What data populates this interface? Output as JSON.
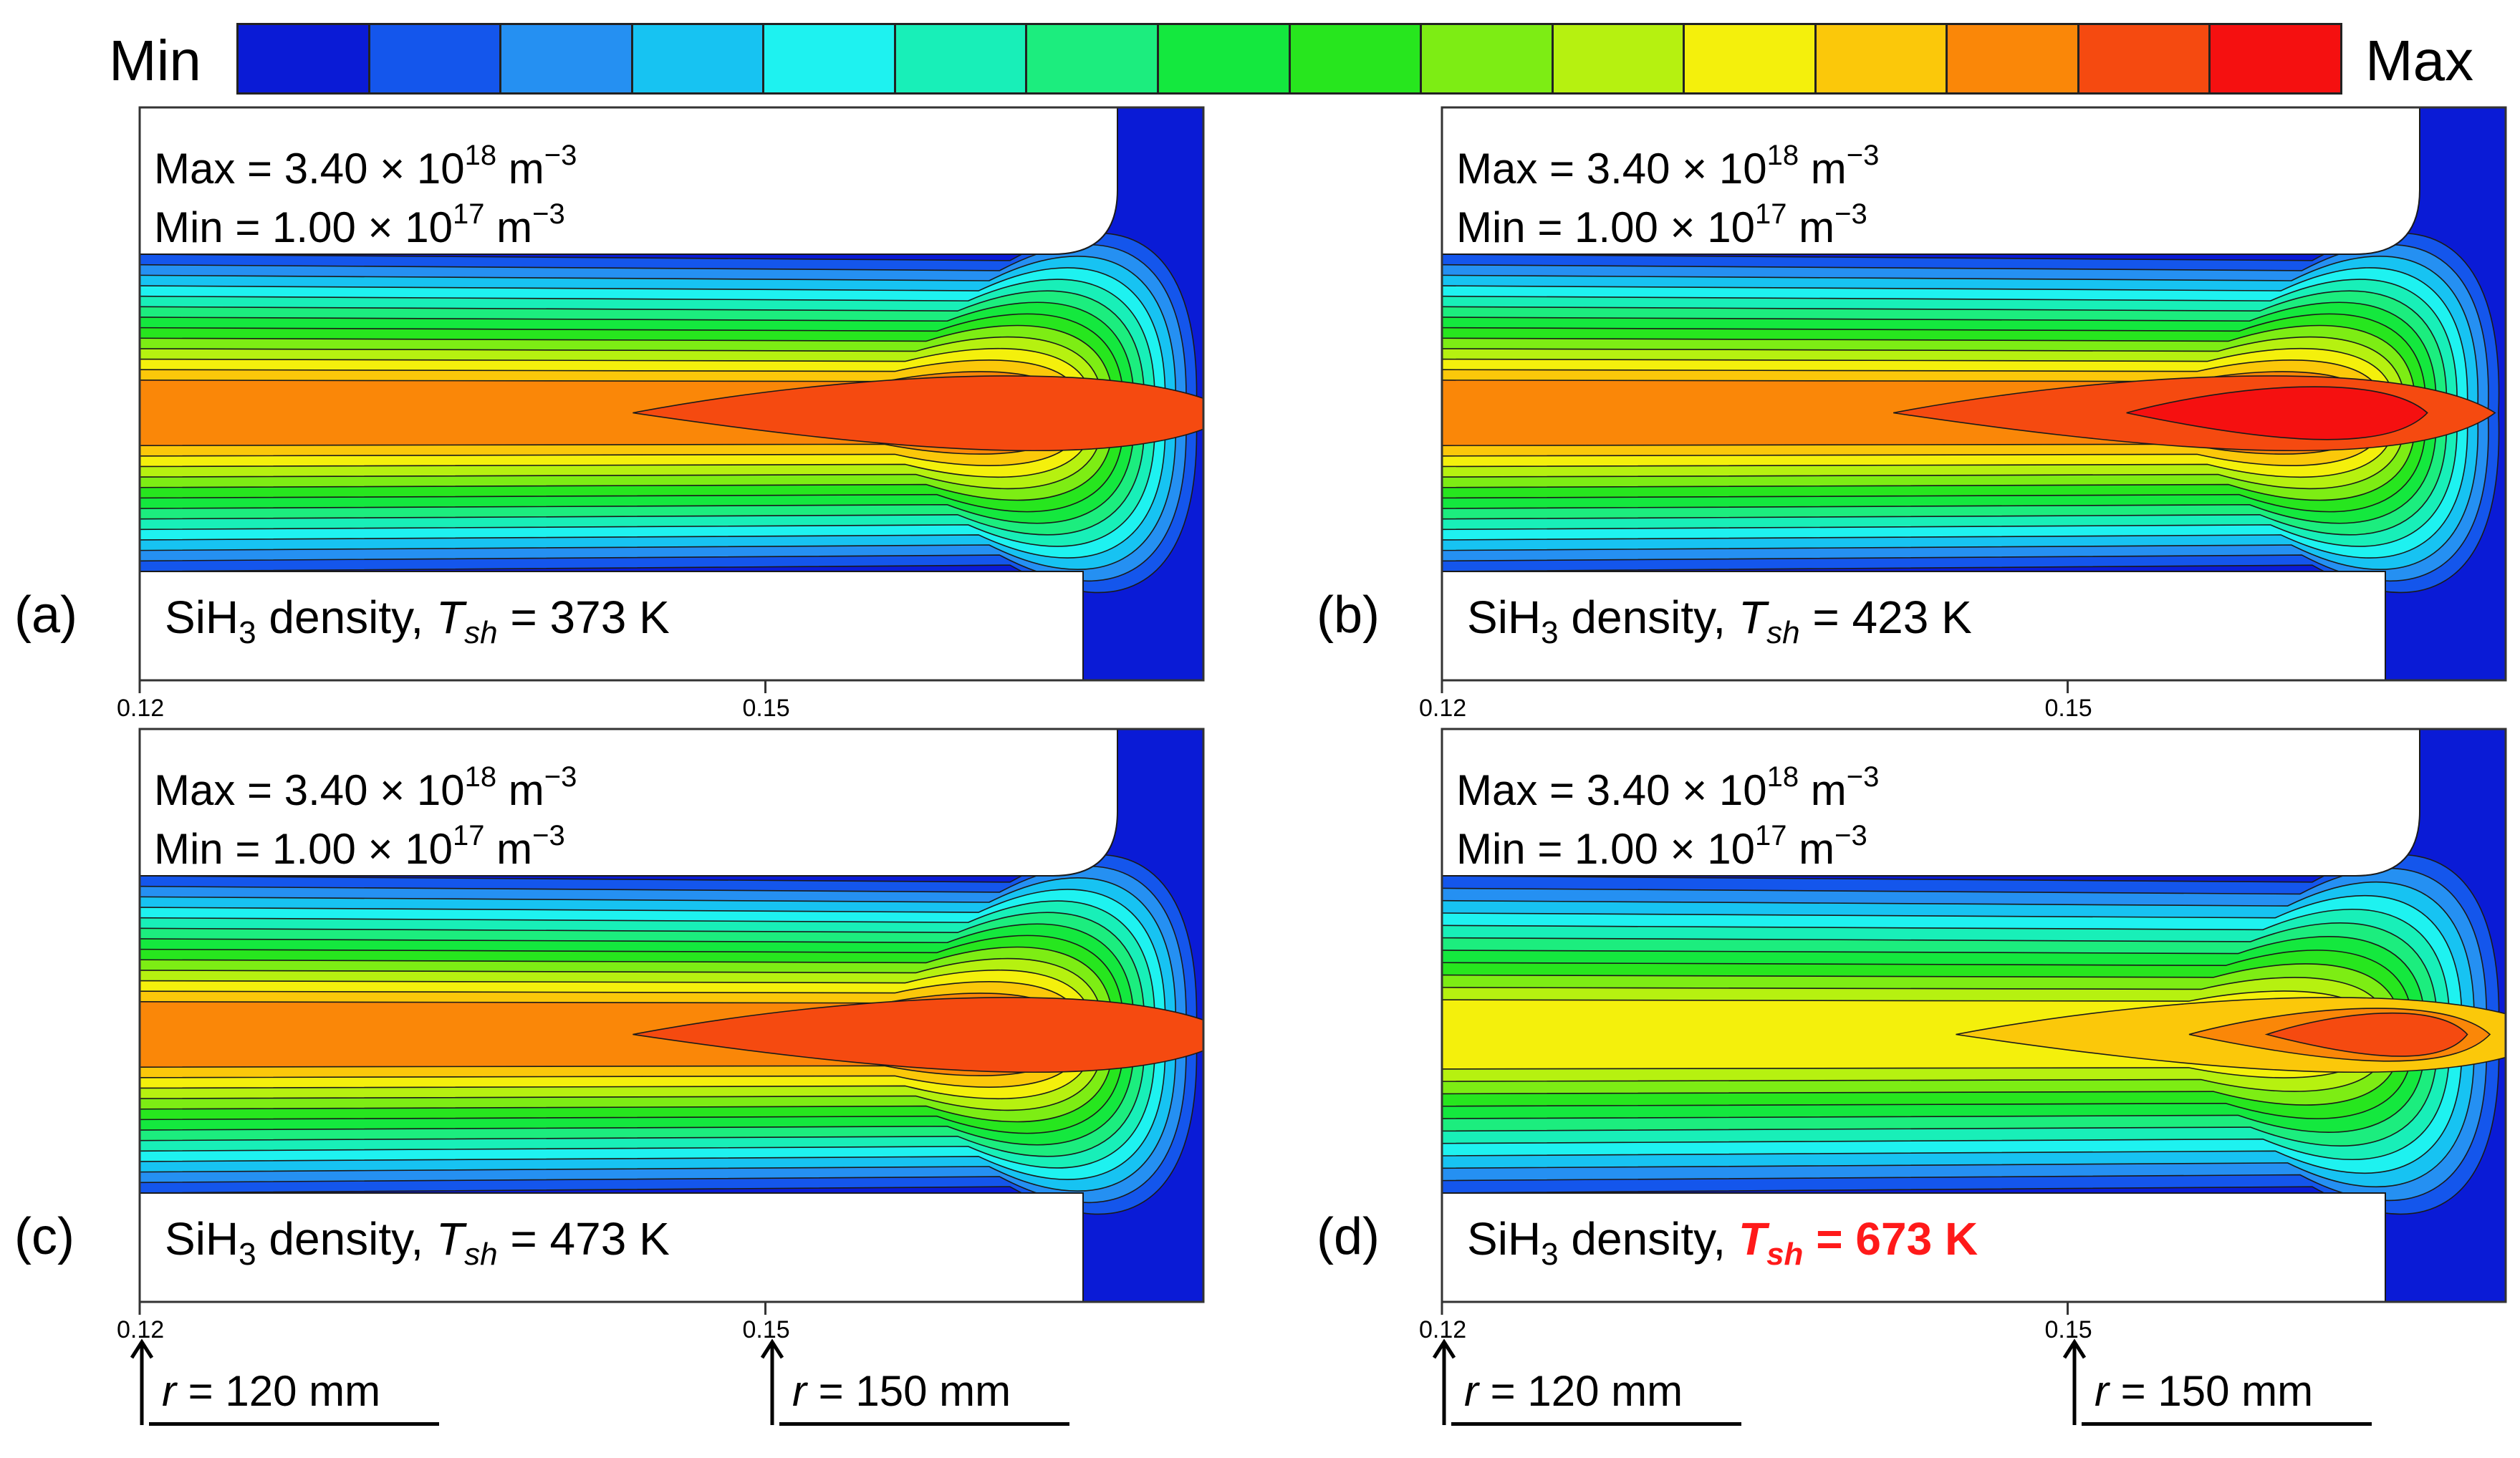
{
  "legend": {
    "min_label": "Min",
    "max_label": "Max",
    "colors": [
      "#0a1bd6",
      "#1456ec",
      "#2590f2",
      "#17c3f2",
      "#1ef2f0",
      "#18efb8",
      "#1ced7e",
      "#14e83e",
      "#27e61e",
      "#7ded14",
      "#b6f110",
      "#f4f00c",
      "#fbc80a",
      "#fa8708",
      "#f54a10",
      "#f51010"
    ]
  },
  "chart_data": [
    {
      "type": "heatmap",
      "panel_label": "(a)",
      "title_quantity": "SiH",
      "title_subscript": "3",
      "title_rest": " density, ",
      "temp_symbol": "T",
      "temp_subscript": "sh",
      "temp_value": " = 373 K",
      "highlight": false,
      "max_text": "Max = 3.40 × 10",
      "max_exponent": "18",
      "max_unit": " m",
      "max_unit_exp": "−3",
      "min_text": "Min = 1.00 × 10",
      "min_exponent": "17",
      "min_unit": " m",
      "min_unit_exp": "−3",
      "x_ticks": [
        "0.12",
        "0.15"
      ],
      "x_tick_values": [
        0.12,
        0.15
      ],
      "xlim": [
        0.12,
        0.171
      ],
      "peak_level": 14,
      "peak_x": 0.166,
      "center_level": 13
    },
    {
      "type": "heatmap",
      "panel_label": "(b)",
      "title_quantity": "SiH",
      "title_subscript": "3",
      "title_rest": " density, ",
      "temp_symbol": "T",
      "temp_subscript": "sh",
      "temp_value": " = 423 K",
      "highlight": false,
      "max_text": "Max = 3.40 × 10",
      "max_exponent": "18",
      "max_unit": " m",
      "max_unit_exp": "−3",
      "min_text": "Min = 1.00 × 10",
      "min_exponent": "17",
      "min_unit": " m",
      "min_unit_exp": "−3",
      "x_ticks": [
        "0.12",
        "0.15"
      ],
      "x_tick_values": [
        0.12,
        0.15
      ],
      "xlim": [
        0.12,
        0.171
      ],
      "peak_level": 15,
      "peak_x": 0.164,
      "center_level": 13
    },
    {
      "type": "heatmap",
      "panel_label": "(c)",
      "title_quantity": "SiH",
      "title_subscript": "3",
      "title_rest": " density, ",
      "temp_symbol": "T",
      "temp_subscript": "sh",
      "temp_value": " = 473 K",
      "highlight": false,
      "max_text": "Max = 3.40 × 10",
      "max_exponent": "18",
      "max_unit": " m",
      "max_unit_exp": "−3",
      "min_text": "Min = 1.00 × 10",
      "min_exponent": "17",
      "min_unit": " m",
      "min_unit_exp": "−3",
      "x_ticks": [
        "0.12",
        "0.15"
      ],
      "x_tick_values": [
        0.12,
        0.15
      ],
      "xlim": [
        0.12,
        0.171
      ],
      "peak_level": 14,
      "peak_x": 0.166,
      "center_level": 13
    },
    {
      "type": "heatmap",
      "panel_label": "(d)",
      "title_quantity": "SiH",
      "title_subscript": "3",
      "title_rest": " density, ",
      "temp_symbol": "T",
      "temp_subscript": "sh",
      "temp_value": " = 673 K",
      "highlight": true,
      "max_text": "Max = 3.40 × 10",
      "max_exponent": "18",
      "max_unit": " m",
      "max_unit_exp": "−3",
      "min_text": "Min = 1.00 × 10",
      "min_exponent": "17",
      "min_unit": " m",
      "min_unit_exp": "−3",
      "x_ticks": [
        "0.12",
        "0.15"
      ],
      "x_tick_values": [
        0.12,
        0.15
      ],
      "xlim": [
        0.12,
        0.171
      ],
      "peak_level": 14,
      "peak_x": 0.167,
      "center_level": 11
    }
  ],
  "radius_markers": [
    {
      "symbol": "r",
      "text": " = 120 mm"
    },
    {
      "symbol": "r",
      "text": " = 150 mm"
    },
    {
      "symbol": "r",
      "text": " = 120 mm"
    },
    {
      "symbol": "r",
      "text": " = 150 mm"
    }
  ]
}
